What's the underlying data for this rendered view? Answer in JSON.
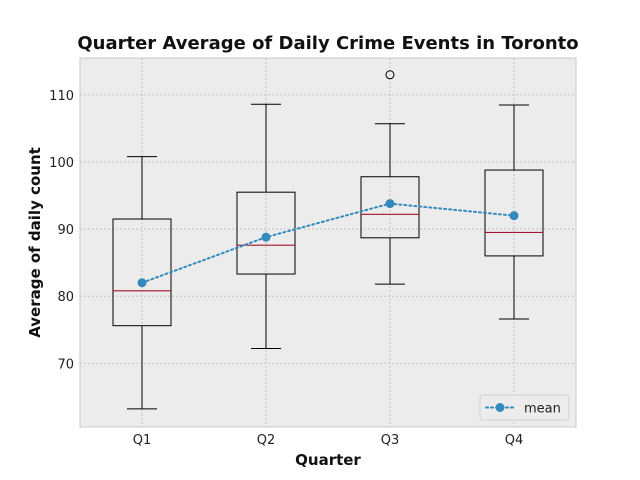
{
  "chart_data": {
    "type": "box",
    "title": "Quarter Average of Daily Crime Events in Toronto",
    "xlabel": "Quarter",
    "ylabel": "Average of daily count",
    "ylim": [
      60.5,
      115.5
    ],
    "yticks": [
      70,
      80,
      90,
      100,
      110
    ],
    "categories": [
      "Q1",
      "Q2",
      "Q3",
      "Q4"
    ],
    "boxes": [
      {
        "category": "Q1",
        "whisker_low": 63.2,
        "q1": 75.6,
        "median": 80.8,
        "q3": 91.5,
        "whisker_high": 100.8,
        "outliers": []
      },
      {
        "category": "Q2",
        "whisker_low": 72.2,
        "q1": 83.3,
        "median": 87.6,
        "q3": 95.5,
        "whisker_high": 108.6,
        "outliers": []
      },
      {
        "category": "Q3",
        "whisker_low": 81.8,
        "q1": 88.7,
        "median": 92.2,
        "q3": 97.8,
        "whisker_high": 105.7,
        "outliers": [
          113.0
        ]
      },
      {
        "category": "Q4",
        "whisker_low": 76.6,
        "q1": 86.0,
        "median": 89.5,
        "q3": 98.8,
        "whisker_high": 108.5,
        "outliers": []
      }
    ],
    "series": [
      {
        "name": "mean",
        "type": "line",
        "style": "dotted",
        "marker": "circle",
        "values": [
          82.0,
          88.8,
          93.8,
          92.0
        ]
      }
    ],
    "legend": {
      "position": "bottom-right",
      "entries": [
        "mean"
      ]
    },
    "grid": true,
    "colors": {
      "plot_bg": "#ececec",
      "grid": "#b8b8b8",
      "box": "#000000",
      "median": "#a2142f",
      "mean": "#348abd"
    }
  }
}
